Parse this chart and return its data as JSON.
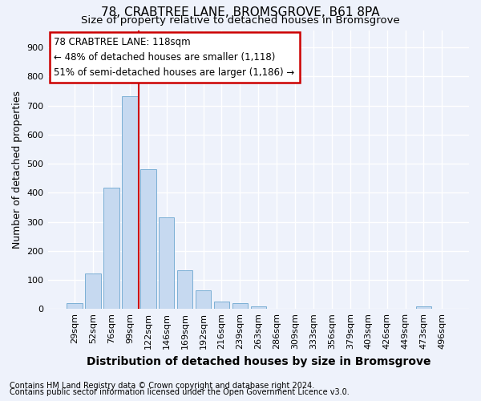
{
  "title": "78, CRABTREE LANE, BROMSGROVE, B61 8PA",
  "subtitle": "Size of property relative to detached houses in Bromsgrove",
  "xlabel": "Distribution of detached houses by size in Bromsgrove",
  "ylabel": "Number of detached properties",
  "footnote1": "Contains HM Land Registry data © Crown copyright and database right 2024.",
  "footnote2": "Contains public sector information licensed under the Open Government Licence v3.0.",
  "bar_labels": [
    "29sqm",
    "52sqm",
    "76sqm",
    "99sqm",
    "122sqm",
    "146sqm",
    "169sqm",
    "192sqm",
    "216sqm",
    "239sqm",
    "263sqm",
    "286sqm",
    "309sqm",
    "333sqm",
    "356sqm",
    "379sqm",
    "403sqm",
    "426sqm",
    "449sqm",
    "473sqm",
    "496sqm"
  ],
  "bar_values": [
    20,
    122,
    418,
    733,
    480,
    315,
    133,
    65,
    25,
    20,
    10,
    0,
    0,
    0,
    0,
    0,
    0,
    0,
    0,
    8,
    0
  ],
  "bar_color": "#c6d9f0",
  "bar_edgecolor": "#7bafd4",
  "vline_x": 3.5,
  "vline_color": "#cc0000",
  "annotation_text": "78 CRABTREE LANE: 118sqm\n← 48% of detached houses are smaller (1,118)\n51% of semi-detached houses are larger (1,186) →",
  "ylim": [
    0,
    960
  ],
  "yticks": [
    0,
    100,
    200,
    300,
    400,
    500,
    600,
    700,
    800,
    900
  ],
  "background_color": "#eef2fb",
  "plot_background": "#eef2fb",
  "grid_color": "#ffffff",
  "title_fontsize": 11,
  "subtitle_fontsize": 9.5,
  "xlabel_fontsize": 10,
  "ylabel_fontsize": 9,
  "tick_fontsize": 8,
  "annotation_fontsize": 8.5,
  "footnote_fontsize": 7
}
